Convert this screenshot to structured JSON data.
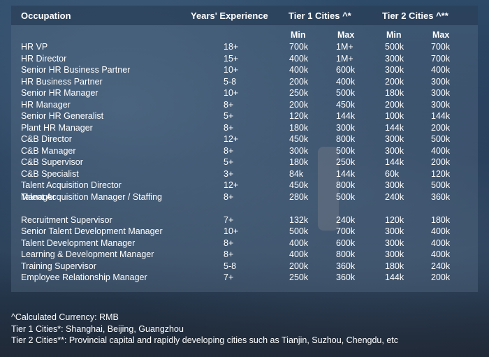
{
  "header": {
    "occupation": "Occupation",
    "years": "Years' Experience",
    "tier1": "Tier 1 Cities ^*",
    "tier2": "Tier 2 Cities ^**",
    "min": "Min",
    "max": "Max"
  },
  "rows": [
    {
      "occ": "HR VP",
      "exp": "18+",
      "t1min": "700k",
      "t1max": "1M+",
      "t2min": "500k",
      "t2max": "700k"
    },
    {
      "occ": "HR Director",
      "exp": "15+",
      "t1min": "400k",
      "t1max": "1M+",
      "t2min": "300k",
      "t2max": "700k"
    },
    {
      "occ": "Senior HR Business Partner",
      "exp": "10+",
      "t1min": "400k",
      "t1max": "600k",
      "t2min": "300k",
      "t2max": "400k"
    },
    {
      "occ": "HR Business Partner",
      "exp": "5-8",
      "t1min": "200k",
      "t1max": "400k",
      "t2min": "200k",
      "t2max": "300k"
    },
    {
      "occ": "Senior HR Manager",
      "exp": "10+",
      "t1min": "250k",
      "t1max": "500k",
      "t2min": "180k",
      "t2max": "300k"
    },
    {
      "occ": "HR Manager",
      "exp": "8+",
      "t1min": "200k",
      "t1max": "450k",
      "t2min": "200k",
      "t2max": "300k"
    },
    {
      "occ": "Senior HR Generalist",
      "exp": "5+",
      "t1min": "120k",
      "t1max": "144k",
      "t2min": "100k",
      "t2max": "144k"
    },
    {
      "occ": "Plant HR Manager",
      "exp": "8+",
      "t1min": "180k",
      "t1max": "300k",
      "t2min": "144k",
      "t2max": "200k"
    },
    {
      "occ": "C&B Director",
      "exp": "12+",
      "t1min": "450k",
      "t1max": "800k",
      "t2min": "300k",
      "t2max": "500k"
    },
    {
      "occ": "C&B Manager",
      "exp": "8+",
      "t1min": "300k",
      "t1max": "500k",
      "t2min": "300k",
      "t2max": "400k"
    },
    {
      "occ": "C&B Supervisor",
      "exp": "5+",
      "t1min": "180k",
      "t1max": "250k",
      "t2min": "144k",
      "t2max": "200k"
    },
    {
      "occ": "C&B Specialist",
      "exp": "3+",
      "t1min": "84k",
      "t1max": "144k",
      "t2min": "60k",
      "t2max": "120k"
    },
    {
      "occ": "Talent Acquisition Director",
      "exp": "12+",
      "t1min": "450k",
      "t1max": "800k",
      "t2min": "300k",
      "t2max": "500k"
    },
    {
      "occ": "Talent Acquisition Manager / Staffing",
      "occ2": "Manager",
      "exp": "8+",
      "t1min": "280k",
      "t1max": "500k",
      "t2min": "240k",
      "t2max": "360k"
    },
    {
      "occ": "Recruitment Supervisor",
      "exp": "7+",
      "t1min": "132k",
      "t1max": "240k",
      "t2min": "120k",
      "t2max": "180k"
    },
    {
      "occ": "Senior Talent Development Manager",
      "exp": "10+",
      "t1min": "500k",
      "t1max": "700k",
      "t2min": "300k",
      "t2max": "400k"
    },
    {
      "occ": "Talent Development Manager",
      "exp": "8+",
      "t1min": "400k",
      "t1max": "600k",
      "t2min": "300k",
      "t2max": "400k"
    },
    {
      "occ": "Learning & Development Manager",
      "exp": "8+",
      "t1min": "400k",
      "t1max": "800k",
      "t2min": "300k",
      "t2max": "400k"
    },
    {
      "occ": "Training Supervisor",
      "exp": "5-8",
      "t1min": "200k",
      "t1max": "360k",
      "t2min": "180k",
      "t2max": "240k"
    },
    {
      "occ": "Employee Relationship Manager",
      "exp": "7+",
      "t1min": "250k",
      "t1max": "360k",
      "t2min": "144k",
      "t2max": "200k"
    }
  ],
  "notes": {
    "currency": "^Calculated Currency: RMB",
    "tier1": "Tier 1 Cities*: Shanghai, Beijing, Guangzhou",
    "tier2": "Tier 2 Cities**: Provincial capital and rapidly developing cities such as Tianjin, Suzhou, Chengdu, etc"
  }
}
